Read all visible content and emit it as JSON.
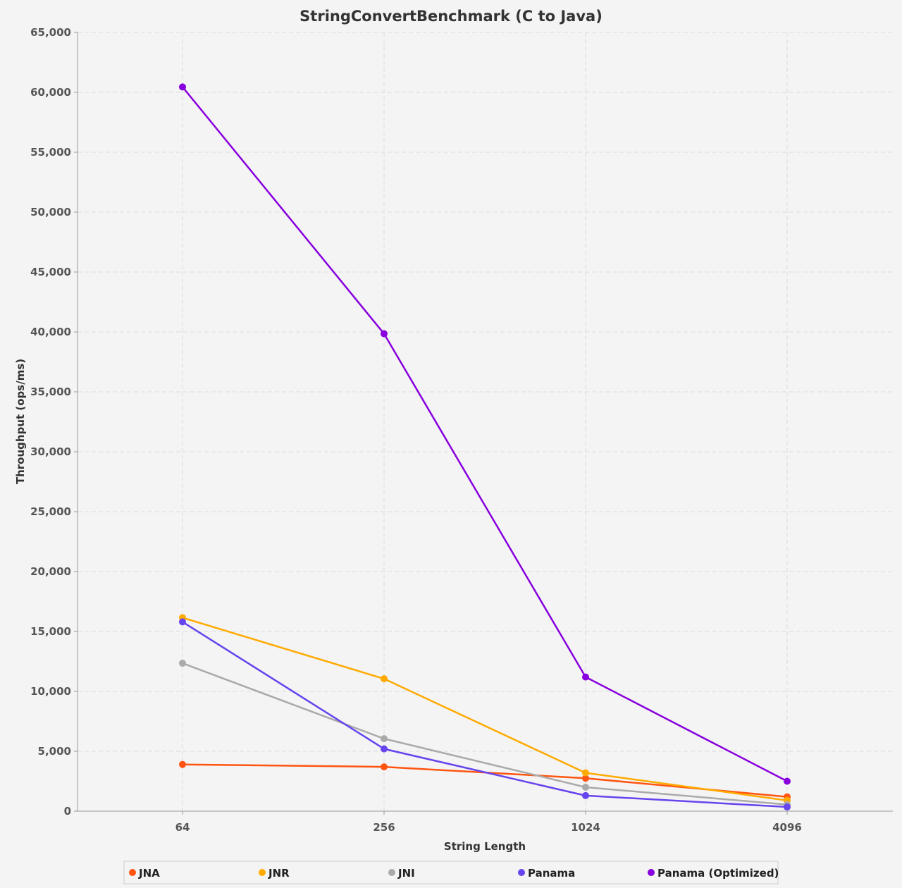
{
  "chart_data": {
    "type": "line",
    "title": "StringConvertBenchmark (C to Java)",
    "xlabel": "String Length",
    "ylabel": "Throughput (ops/ms)",
    "categories": [
      "64",
      "256",
      "1024",
      "4096"
    ],
    "ylim": [
      0,
      65000
    ],
    "yticks": [
      0,
      5000,
      10000,
      15000,
      20000,
      25000,
      30000,
      35000,
      40000,
      45000,
      50000,
      55000,
      60000,
      65000
    ],
    "ytick_labels": [
      "0",
      "5,000",
      "10,000",
      "15,000",
      "20,000",
      "25,000",
      "30,000",
      "35,000",
      "40,000",
      "45,000",
      "50,000",
      "55,000",
      "60,000",
      "65,000"
    ],
    "grid": true,
    "legend_position": "bottom",
    "series": [
      {
        "name": "JNA",
        "color": "#ff5511",
        "values": [
          3900,
          3700,
          2750,
          1200
        ]
      },
      {
        "name": "JNR",
        "color": "#ffaa00",
        "values": [
          16150,
          11050,
          3200,
          900
        ]
      },
      {
        "name": "JNI",
        "color": "#aaaaaa",
        "values": [
          12350,
          6050,
          2000,
          550
        ]
      },
      {
        "name": "Panama",
        "color": "#6644ee",
        "values": [
          15800,
          5200,
          1300,
          350
        ]
      },
      {
        "name": "Panama (Optimized)",
        "color": "#8800dd",
        "values": [
          60450,
          39850,
          11200,
          2500
        ]
      }
    ]
  }
}
